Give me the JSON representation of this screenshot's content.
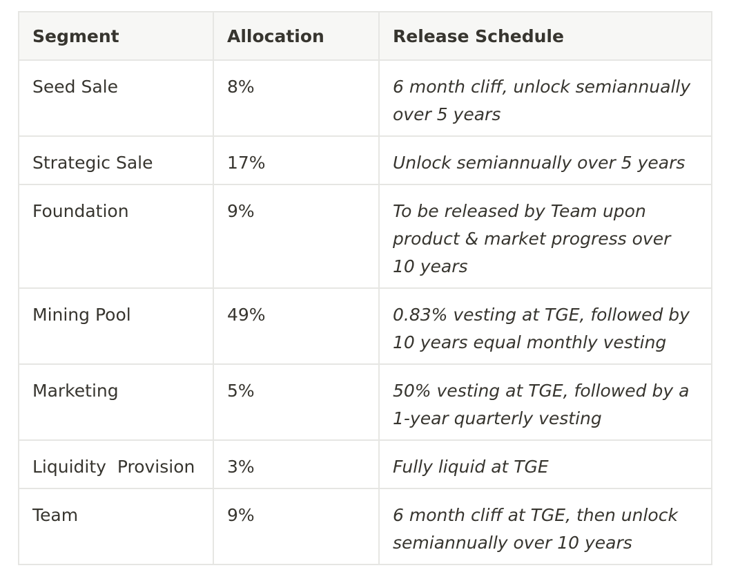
{
  "table": {
    "headers": [
      "Segment",
      "Allocation",
      "Release Schedule"
    ],
    "rows": [
      {
        "segment": "Seed Sale",
        "allocation": "8%",
        "schedule": "6 month cliff, unlock semiannually over 5 years"
      },
      {
        "segment": "Strategic Sale",
        "allocation": "17%",
        "schedule": "Unlock semiannually over 5 years"
      },
      {
        "segment": "Foundation",
        "allocation": "9%",
        "schedule": "To be released by Team upon product & market progress over 10 years"
      },
      {
        "segment": "Mining Pool",
        "allocation": "49%",
        "schedule": "0.83% vesting at TGE, followed by 10 years equal monthly vesting"
      },
      {
        "segment": "Marketing",
        "allocation": "5%",
        "schedule": "50% vesting at TGE, followed by a 1-year quarterly vesting"
      },
      {
        "segment": "Liquidity  Provision",
        "allocation": "3%",
        "schedule": "Fully liquid at TGE"
      },
      {
        "segment": "Team",
        "allocation": "9%",
        "schedule": "6 month cliff at TGE, then unlock semiannually over 10 years"
      }
    ]
  },
  "colors": {
    "text": "#37352f",
    "border": "#e6e6e3",
    "header_bg": "#f7f7f5"
  }
}
